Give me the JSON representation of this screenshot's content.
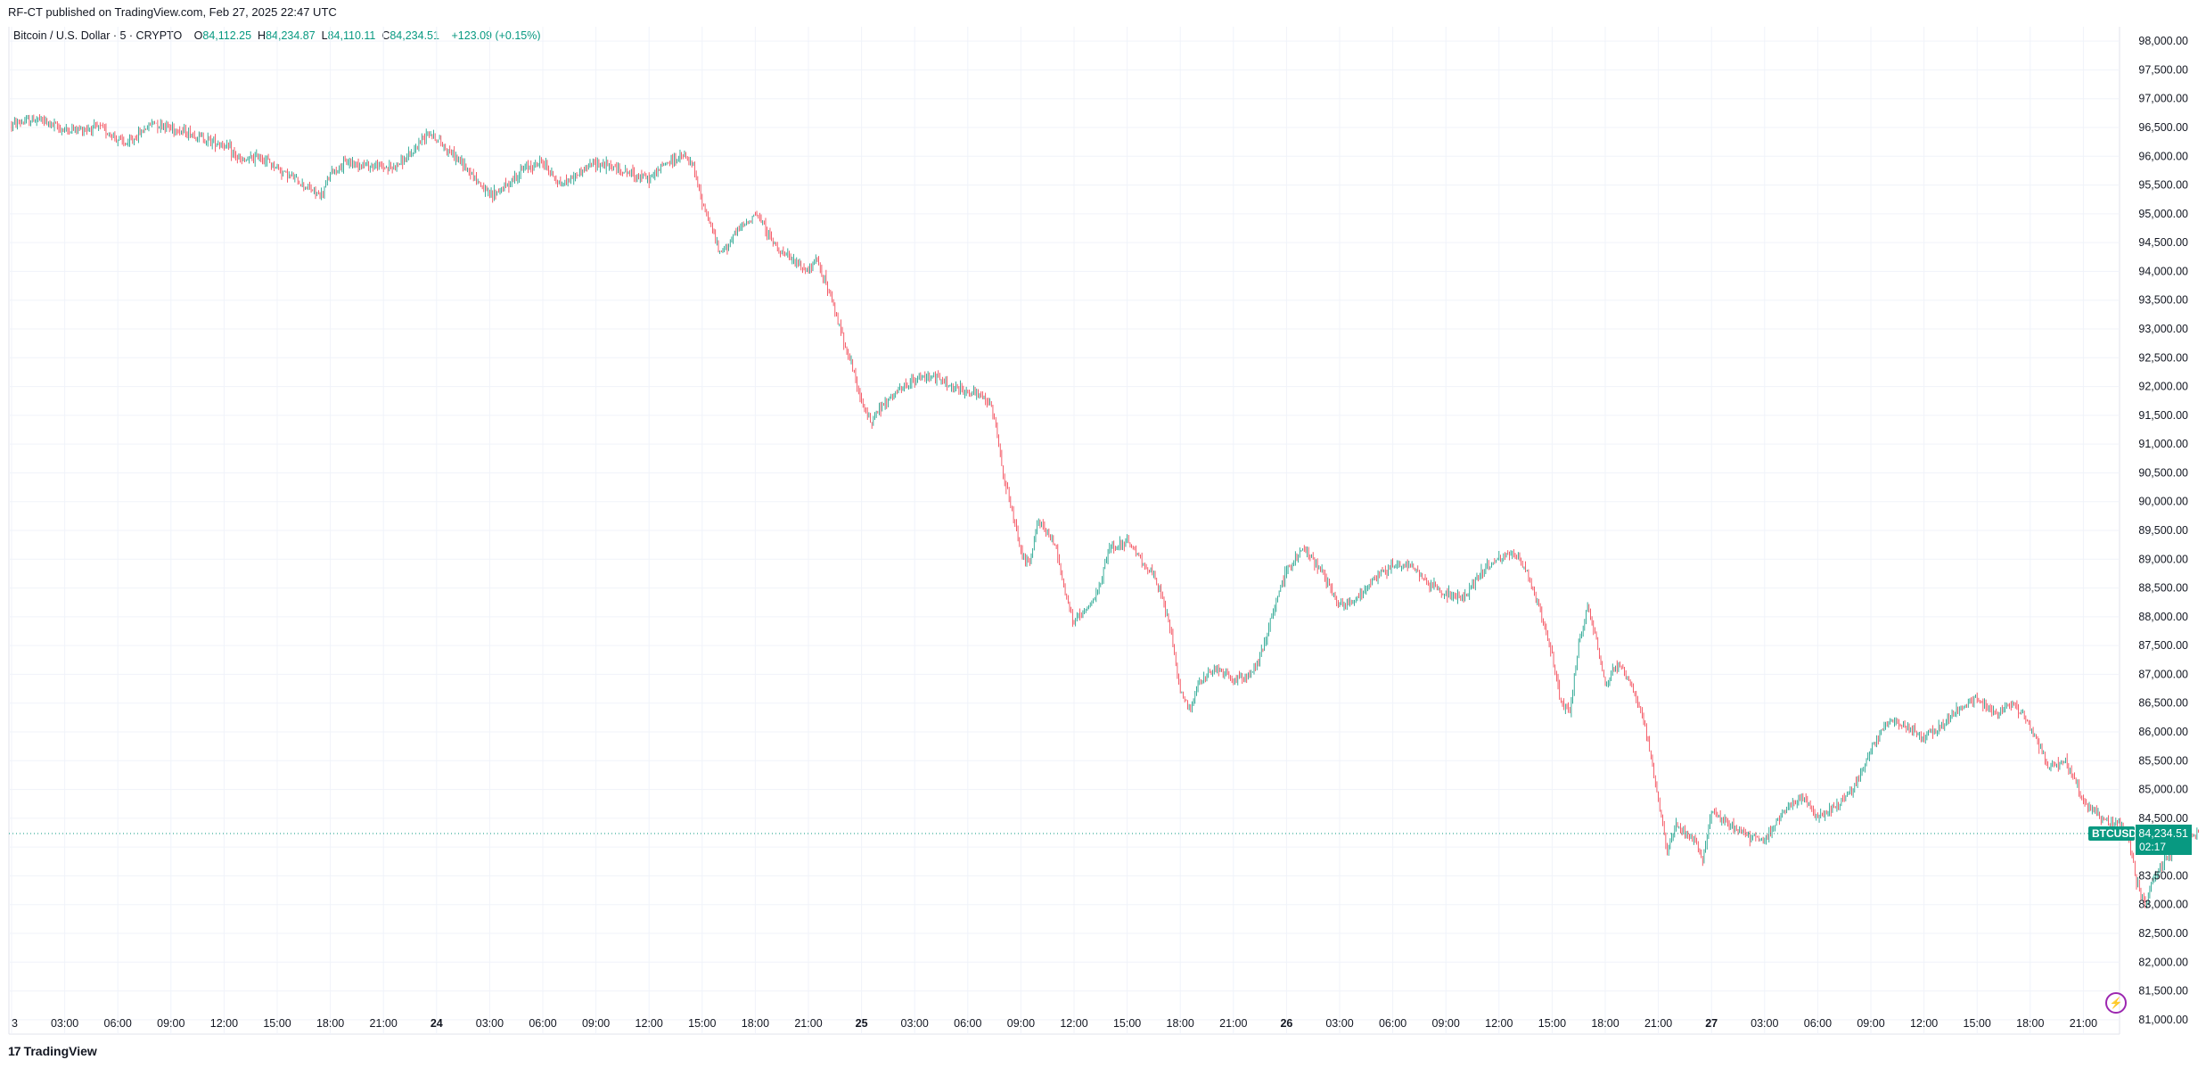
{
  "publish_line": "RF-CT published on TradingView.com, Feb 27, 2025 22:47 UTC",
  "legend": {
    "symbol": "Bitcoin / U.S. Dollar · 5 · CRYPTO",
    "open_label": "O",
    "open": "84,112.25",
    "high_label": "H",
    "high": "84,234.87",
    "low_label": "L",
    "low": "84,110.11",
    "close_label": "C",
    "close": "84,234.51",
    "change": "+123.09 (+0.15%)"
  },
  "price_tag": {
    "ticker": "BTCUSD",
    "price": "84,234.51",
    "countdown": "02:17"
  },
  "footer": {
    "brand": "TradingView",
    "mark": "17"
  },
  "colors": {
    "up": "#089981",
    "down": "#f23645",
    "grid": "#f0f3fa",
    "axis_text": "#131722",
    "alert": "#9c27b0"
  },
  "icons": [
    "tradingview-logo-icon",
    "alert-bolt-icon"
  ],
  "chart_data": {
    "type": "candlestick",
    "title": "",
    "xlabel": "",
    "ylabel": "",
    "interval": "5",
    "ylim": [
      80750,
      98250
    ],
    "y_ticks": [
      "98,000.00",
      "97,500.00",
      "97,000.00",
      "96,500.00",
      "96,000.00",
      "95,500.00",
      "95,000.00",
      "94,500.00",
      "94,000.00",
      "93,500.00",
      "93,000.00",
      "92,500.00",
      "92,000.00",
      "91,500.00",
      "91,000.00",
      "90,500.00",
      "90,000.00",
      "89,500.00",
      "89,000.00",
      "88,500.00",
      "88,000.00",
      "87,500.00",
      "87,000.00",
      "86,500.00",
      "86,000.00",
      "85,500.00",
      "85,000.00",
      "84,500.00",
      "84,000.00",
      "83,500.00",
      "83,000.00",
      "82,500.00",
      "82,000.00",
      "81,500.00",
      "81,000.00"
    ],
    "x_ticks": [
      "3",
      "03:00",
      "06:00",
      "09:00",
      "12:00",
      "15:00",
      "18:00",
      "21:00",
      "24",
      "03:00",
      "06:00",
      "09:00",
      "12:00",
      "15:00",
      "18:00",
      "21:00",
      "25",
      "03:00",
      "06:00",
      "09:00",
      "12:00",
      "15:00",
      "18:00",
      "21:00",
      "26",
      "03:00",
      "06:00",
      "09:00",
      "12:00",
      "15:00",
      "18:00",
      "21:00",
      "27",
      "03:00",
      "06:00",
      "09:00",
      "12:00",
      "15:00",
      "18:00",
      "21:00"
    ],
    "x_tick_bold": [
      "24",
      "25",
      "26",
      "27"
    ],
    "last_price": 84234.51,
    "price_path": [
      [
        0,
        96550
      ],
      [
        1.5,
        96650
      ],
      [
        3,
        96450
      ],
      [
        5,
        96500
      ],
      [
        6.5,
        96200
      ],
      [
        8,
        96600
      ],
      [
        10,
        96400
      ],
      [
        12,
        96200
      ],
      [
        13,
        95900
      ],
      [
        14,
        96000
      ],
      [
        15,
        95800
      ],
      [
        16.5,
        95500
      ],
      [
        17.5,
        95300
      ],
      [
        18,
        95700
      ],
      [
        19,
        95900
      ],
      [
        20,
        95850
      ],
      [
        21.5,
        95800
      ],
      [
        22.5,
        96000
      ],
      [
        23.5,
        96450
      ],
      [
        24,
        96300
      ],
      [
        25,
        96000
      ],
      [
        26,
        95700
      ],
      [
        27,
        95300
      ],
      [
        28,
        95500
      ],
      [
        29,
        95800
      ],
      [
        30,
        95900
      ],
      [
        31,
        95500
      ],
      [
        32,
        95700
      ],
      [
        33,
        95900
      ],
      [
        34,
        95800
      ],
      [
        35,
        95700
      ],
      [
        36,
        95600
      ],
      [
        37,
        95900
      ],
      [
        38,
        96000
      ],
      [
        38.5,
        95800
      ],
      [
        39,
        95200
      ],
      [
        39.5,
        94800
      ],
      [
        40,
        94300
      ],
      [
        41,
        94700
      ],
      [
        42,
        95000
      ],
      [
        42.5,
        94800
      ],
      [
        43,
        94500
      ],
      [
        44,
        94200
      ],
      [
        45,
        94000
      ],
      [
        45.5,
        94200
      ],
      [
        46,
        93800
      ],
      [
        46.5,
        93300
      ],
      [
        47,
        92800
      ],
      [
        47.5,
        92300
      ],
      [
        48,
        91700
      ],
      [
        48.5,
        91400
      ],
      [
        49,
        91600
      ],
      [
        50,
        91900
      ],
      [
        51,
        92100
      ],
      [
        52,
        92200
      ],
      [
        53,
        92000
      ],
      [
        54,
        91900
      ],
      [
        55,
        91800
      ],
      [
        55.5,
        91500
      ],
      [
        56,
        90500
      ],
      [
        56.5,
        89800
      ],
      [
        57,
        89100
      ],
      [
        57.5,
        88900
      ],
      [
        58,
        89700
      ],
      [
        59,
        89200
      ],
      [
        59.5,
        88400
      ],
      [
        60,
        87900
      ],
      [
        61,
        88200
      ],
      [
        61.5,
        88600
      ],
      [
        62,
        89200
      ],
      [
        63,
        89300
      ],
      [
        64,
        88900
      ],
      [
        64.5,
        88700
      ],
      [
        65,
        88300
      ],
      [
        65.5,
        87700
      ],
      [
        66,
        86700
      ],
      [
        66.5,
        86400
      ],
      [
        67,
        86800
      ],
      [
        68,
        87100
      ],
      [
        69,
        86900
      ],
      [
        70,
        87000
      ],
      [
        70.5,
        87300
      ],
      [
        71,
        87800
      ],
      [
        71.5,
        88400
      ],
      [
        72,
        88800
      ],
      [
        73,
        89200
      ],
      [
        74,
        88800
      ],
      [
        74.5,
        88500
      ],
      [
        75,
        88200
      ],
      [
        76,
        88300
      ],
      [
        77,
        88700
      ],
      [
        78,
        88900
      ],
      [
        79,
        88900
      ],
      [
        80,
        88600
      ],
      [
        81,
        88400
      ],
      [
        82,
        88300
      ],
      [
        83,
        88800
      ],
      [
        84,
        89000
      ],
      [
        85,
        89100
      ],
      [
        85.5,
        88800
      ],
      [
        86,
        88400
      ],
      [
        86.5,
        87900
      ],
      [
        87,
        87300
      ],
      [
        87.5,
        86500
      ],
      [
        88,
        86400
      ],
      [
        88.5,
        87500
      ],
      [
        89,
        88200
      ],
      [
        89.5,
        87600
      ],
      [
        90,
        86800
      ],
      [
        90.5,
        87100
      ],
      [
        91,
        87100
      ],
      [
        91.5,
        86800
      ],
      [
        92,
        86400
      ],
      [
        92.5,
        85700
      ],
      [
        93,
        84800
      ],
      [
        93.5,
        83900
      ],
      [
        94,
        84400
      ],
      [
        95,
        84100
      ],
      [
        95.5,
        83800
      ],
      [
        96,
        84600
      ],
      [
        97,
        84400
      ],
      [
        98,
        84200
      ],
      [
        99,
        84100
      ],
      [
        100,
        84600
      ],
      [
        101,
        84900
      ],
      [
        102,
        84500
      ],
      [
        103,
        84700
      ],
      [
        104,
        85000
      ],
      [
        105,
        85700
      ],
      [
        106,
        86200
      ],
      [
        107,
        86100
      ],
      [
        108,
        85900
      ],
      [
        109,
        86100
      ],
      [
        110,
        86400
      ],
      [
        111,
        86600
      ],
      [
        112,
        86300
      ],
      [
        113,
        86500
      ],
      [
        114,
        86100
      ],
      [
        114.5,
        85800
      ],
      [
        115,
        85400
      ],
      [
        116,
        85500
      ],
      [
        117,
        84800
      ],
      [
        118,
        84500
      ],
      [
        119,
        84400
      ],
      [
        119.5,
        84200
      ],
      [
        120,
        83400
      ],
      [
        120.5,
        83000
      ],
      [
        121,
        83500
      ],
      [
        122,
        83900
      ],
      [
        122.5,
        84100
      ],
      [
        123,
        84200
      ],
      [
        123.5,
        84234.51
      ]
    ]
  }
}
